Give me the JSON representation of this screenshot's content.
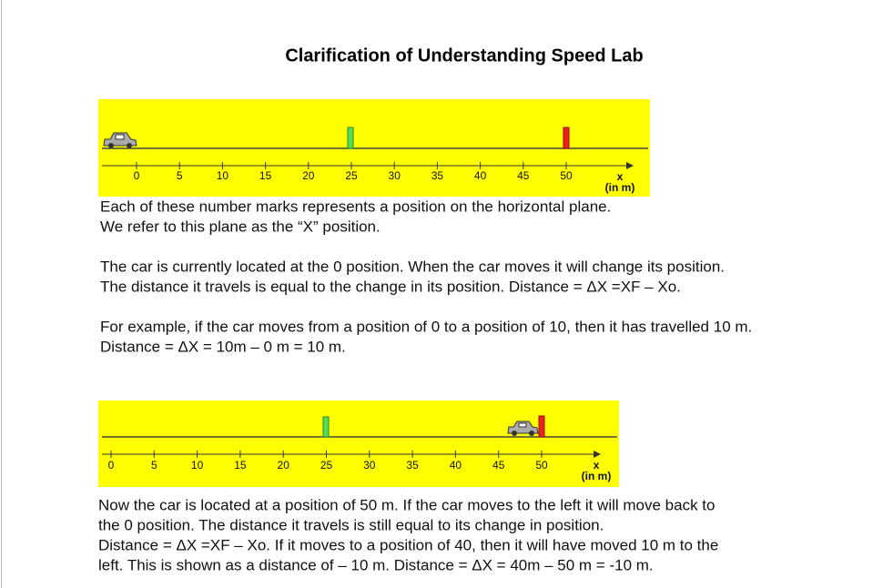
{
  "title": "Clarification of Understanding Speed Lab",
  "figure_1": {
    "ticks": [
      0,
      5,
      10,
      15,
      20,
      25,
      30,
      35,
      40,
      45,
      50
    ],
    "axis_label": "x",
    "unit": "(in m)"
  },
  "paragraphs_1": [
    [
      "Each of these number marks represents a position on the horizontal plane.",
      "We refer to this plane as the “X” position."
    ],
    [
      "The car is currently located at the 0 position.  When the car moves it will change its position.",
      "The distance it travels is equal to the change in its position.  Distance = ΔX =XF – Xo."
    ],
    [
      "For example, if the car moves from a position of 0 to a position of 10, then it has travelled 10 m.",
      "Distance = ΔX = 10m – 0 m = 10 m."
    ]
  ],
  "figure_2": {
    "ticks": [
      0,
      5,
      10,
      15,
      20,
      25,
      30,
      35,
      40,
      45,
      50
    ],
    "axis_label": "x",
    "unit": "(in m)"
  },
  "paragraphs_2": [
    [
      "Now the car is located at a position of 50 m.  If the car moves to the left it will move back to",
      "the 0 position.  The distance it travels is still equal to its change in position.",
      "Distance = ΔX =XF – Xo.   If it moves to a position of 40, then it will have moved 10 m to the",
      "left.  This is shown as a distance of – 10 m.  Distance = ΔX = 40m – 50 m = -10 m."
    ]
  ]
}
